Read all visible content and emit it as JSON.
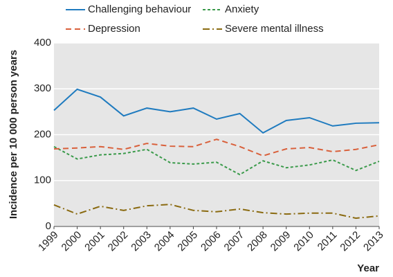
{
  "chart_data": {
    "type": "line",
    "y_label": "Incidence per 10 000 person years",
    "x_label": "Year",
    "categories": [
      "1999",
      "2000",
      "2001",
      "2002",
      "2003",
      "2004",
      "2005",
      "2006",
      "2007",
      "2008",
      "2009",
      "2010",
      "2011",
      "2012",
      "2013"
    ],
    "series": [
      {
        "name": "Challenging behaviour",
        "color": "#1f7bbf",
        "linestyle": "solid",
        "values": [
          253,
          299,
          282,
          241,
          258,
          250,
          258,
          234,
          246,
          204,
          231,
          237,
          219,
          225,
          226
        ]
      },
      {
        "name": "Anxiety",
        "color": "#3a9a4a",
        "linestyle": "dotted",
        "values": [
          174,
          147,
          156,
          159,
          168,
          139,
          136,
          140,
          113,
          143,
          128,
          134,
          145,
          122,
          142
        ]
      },
      {
        "name": "Depression",
        "color": "#d9603b",
        "linestyle": "dashed",
        "values": [
          169,
          171,
          174,
          168,
          181,
          175,
          174,
          190,
          174,
          154,
          169,
          172,
          163,
          168,
          178
        ]
      },
      {
        "name": "Severe mental illness",
        "color": "#8a6a10",
        "linestyle": "dashdot",
        "values": [
          47,
          27,
          44,
          35,
          45,
          48,
          35,
          32,
          38,
          30,
          27,
          29,
          29,
          18,
          23
        ]
      }
    ],
    "ylim": [
      0,
      400
    ],
    "yticks": [
      0,
      100,
      200,
      300,
      400
    ],
    "grid": true
  }
}
